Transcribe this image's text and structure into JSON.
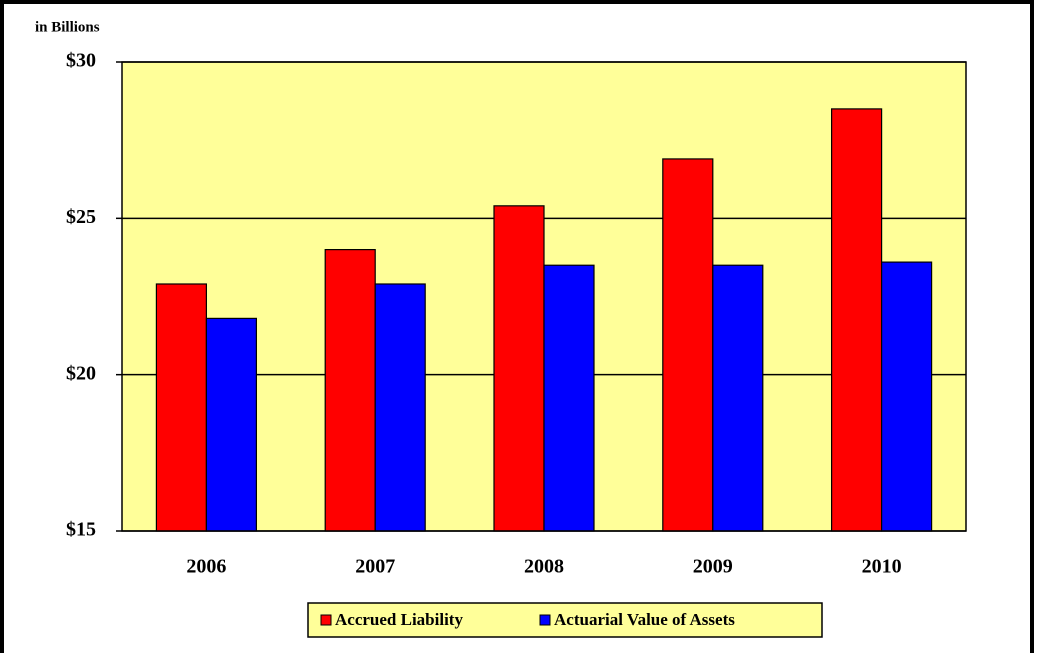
{
  "chart_data": {
    "type": "bar",
    "title": "in Billions",
    "categories": [
      "2006",
      "2007",
      "2008",
      "2009",
      "2010"
    ],
    "series": [
      {
        "name": "Accrued Liability",
        "color": "#ff0000",
        "values": [
          22.9,
          24.0,
          25.4,
          26.9,
          28.5
        ]
      },
      {
        "name": "Actuarial Value of Assets",
        "color": "#0000ff",
        "values": [
          21.8,
          22.9,
          23.5,
          23.5,
          23.6
        ]
      }
    ],
    "ylim": [
      15,
      30
    ],
    "yticks": [
      {
        "value": 15,
        "label": "$15"
      },
      {
        "value": 20,
        "label": "$20"
      },
      {
        "value": 25,
        "label": "$25"
      },
      {
        "value": 30,
        "label": "$30"
      }
    ],
    "grid": true,
    "plot_background": "#ffff99",
    "legend": "bottom"
  }
}
